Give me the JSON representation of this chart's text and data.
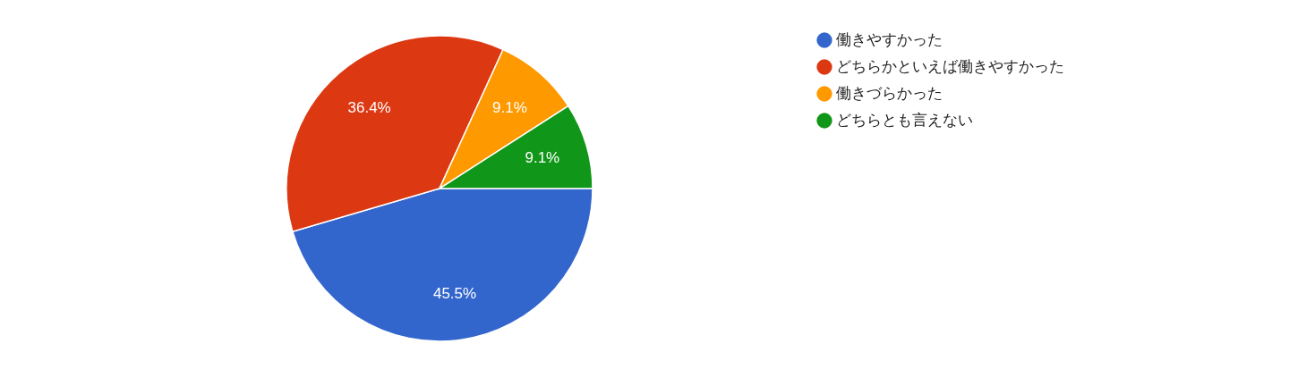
{
  "chart_data": {
    "type": "pie",
    "categories": [
      "働きやすかった",
      "どちらかといえば働きやすかった",
      "働きづらかった",
      "どちらとも言えない"
    ],
    "values": [
      45.5,
      36.4,
      9.1,
      9.1
    ],
    "colors": [
      "#3366cc",
      "#dc3912",
      "#ff9900",
      "#109618"
    ],
    "value_labels": [
      "45.5%",
      "36.4%",
      "9.1%",
      "9.1%"
    ],
    "legend": "top right"
  }
}
